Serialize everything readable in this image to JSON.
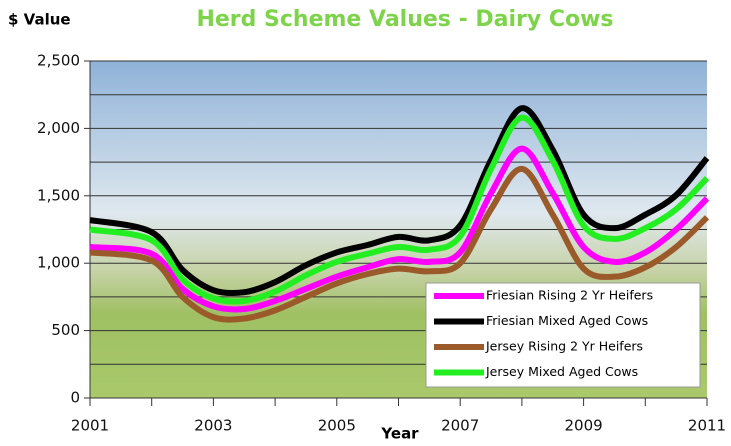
{
  "chart_data": {
    "type": "line",
    "title": "Herd Scheme Values - Dairy Cows",
    "y_label": "$ Value",
    "x_label": "Year",
    "x": [
      2001,
      2002,
      2002.5,
      2003,
      2003.5,
      2004,
      2004.5,
      2005,
      2005.5,
      2006,
      2006.5,
      2007,
      2007.5,
      2008,
      2008.5,
      2009,
      2009.5,
      2010,
      2010.5,
      2011
    ],
    "series": [
      {
        "name": "Friesian Rising 2 Yr Heifers",
        "color": "#ff00ff",
        "values": [
          1120,
          1070,
          810,
          680,
          660,
          720,
          810,
          900,
          970,
          1030,
          1010,
          1080,
          1520,
          1850,
          1520,
          1120,
          1010,
          1080,
          1250,
          1480
        ]
      },
      {
        "name": "Friesian Mixed Aged Cows",
        "color": "#000000",
        "values": [
          1320,
          1230,
          950,
          800,
          785,
          860,
          985,
          1080,
          1135,
          1195,
          1170,
          1280,
          1765,
          2150,
          1840,
          1360,
          1260,
          1360,
          1505,
          1780
        ]
      },
      {
        "name": "Jersey Rising 2 Yr Heifers",
        "color": "#9b5a2a",
        "values": [
          1080,
          1020,
          750,
          600,
          590,
          650,
          750,
          850,
          920,
          960,
          940,
          1000,
          1400,
          1700,
          1360,
          960,
          900,
          970,
          1120,
          1340
        ]
      },
      {
        "name": "Jersey Mixed Aged Cows",
        "color": "#22ee22",
        "values": [
          1250,
          1170,
          880,
          740,
          720,
          790,
          910,
          1010,
          1070,
          1120,
          1100,
          1200,
          1700,
          2080,
          1760,
          1280,
          1180,
          1260,
          1400,
          1630
        ]
      }
    ],
    "xlim": [
      2001,
      2011
    ],
    "xticks": [
      2001,
      2003,
      2005,
      2007,
      2009,
      2011
    ],
    "minor_xticks": [
      2002,
      2004,
      2006,
      2008,
      2010
    ],
    "ylim": [
      0,
      2500
    ],
    "yticks": [
      {
        "value": 0,
        "label": "0"
      },
      {
        "value": 500,
        "label": "500"
      },
      {
        "value": 1000,
        "label": "1,000"
      },
      {
        "value": 1500,
        "label": "1,500"
      },
      {
        "value": 2000,
        "label": "2,000"
      },
      {
        "value": 2500,
        "label": "2,500"
      }
    ],
    "minor_yticks": [
      250,
      750,
      1250,
      1750,
      2250
    ],
    "grid": true,
    "legend": "lower right"
  }
}
